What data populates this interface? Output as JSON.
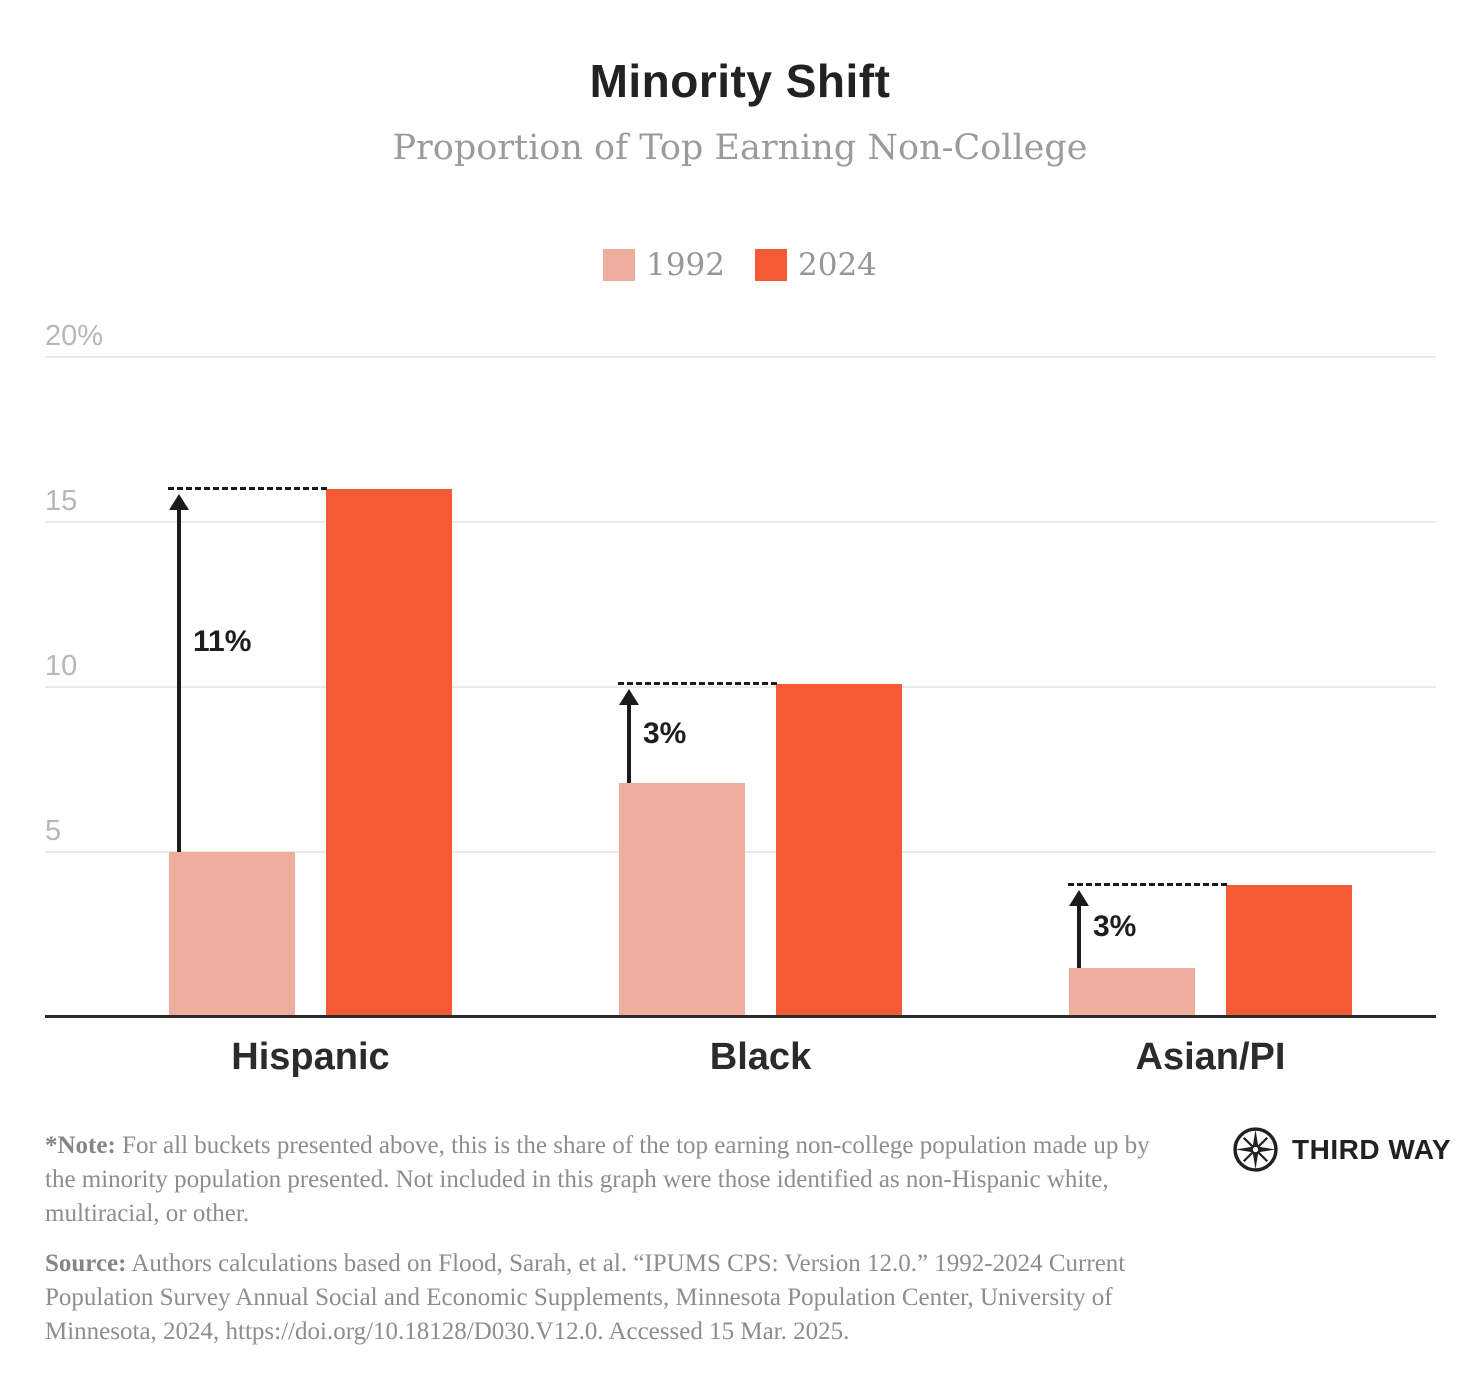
{
  "header": {
    "title": "Minority Shift",
    "subtitle": "Proportion of Top Earning Non-College"
  },
  "chart_data": {
    "type": "bar",
    "title": "Minority Shift",
    "subtitle": "Proportion of Top Earning Non-College",
    "categories": [
      "Hispanic",
      "Black",
      "Asian/PI"
    ],
    "series": [
      {
        "name": "1992",
        "color": "#EEAD9E",
        "values": [
          5.0,
          7.1,
          1.5
        ]
      },
      {
        "name": "2024",
        "color": "#F45B35",
        "values": [
          16.0,
          10.1,
          4.0
        ]
      }
    ],
    "annotations": [
      {
        "category": "Hispanic",
        "label": "11%"
      },
      {
        "category": "Black",
        "label": "3%"
      },
      {
        "category": "Asian/PI",
        "label": "3%"
      }
    ],
    "yticks": [
      {
        "label": "20%",
        "value": 20
      },
      {
        "label": "15",
        "value": 15
      },
      {
        "label": "10",
        "value": 10
      },
      {
        "label": "5",
        "value": 5
      }
    ],
    "ylim": [
      0,
      20
    ],
    "grid": true,
    "legend_position": "top",
    "xlabel": "",
    "ylabel": ""
  },
  "footnote": {
    "note_label": "*Note:",
    "note_text": " For all buckets presented above, this is the share of the top earning non-college population made up by the minority population presented. Not included in this graph were those identified as non-Hispanic white, multiracial, or other.",
    "source_label": "Source:",
    "source_text": " Authors calculations based on Flood, Sarah, et al. “IPUMS CPS: Version 12.0.” 1992-2024 Current Population Survey Annual Social and Economic Supplements, Minnesota Population Center, University of Minnesota, 2024, https://doi.org/10.18128/D030.V12.0. Accessed 15 Mar. 2025."
  },
  "logo": {
    "text": "THIRD WAY"
  }
}
